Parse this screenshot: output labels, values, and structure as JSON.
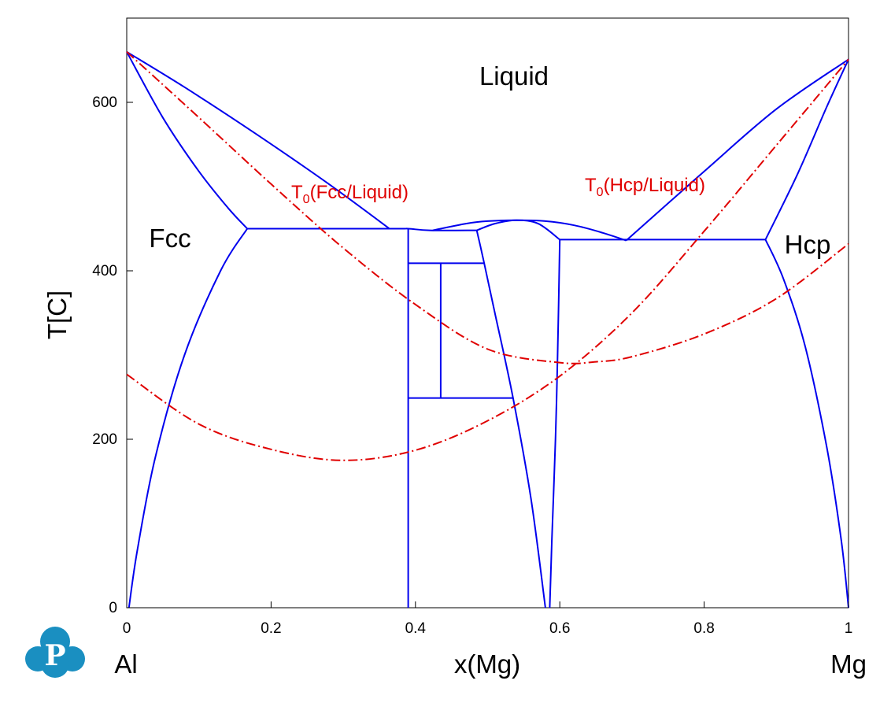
{
  "chart_data": {
    "type": "line",
    "title": "",
    "xlabel": "x(Mg)",
    "ylabel": "T[C]",
    "xlim": [
      0,
      1
    ],
    "ylim": [
      0,
      700
    ],
    "x_ticks": [
      "0",
      "0.2",
      "0.4",
      "0.6",
      "0.8",
      "1"
    ],
    "y_ticks": [
      "0",
      "200",
      "400",
      "600"
    ],
    "end_labels": {
      "left": "Al",
      "right": "Mg"
    },
    "grid": false,
    "legend": "none",
    "colors": {
      "phase_boundary": "#0000ee",
      "t0_curve": "#e00000"
    },
    "phase_labels": [
      "Liquid",
      "Fcc",
      "Hcp"
    ],
    "t0_labels": [
      {
        "main": "T",
        "sub": "0",
        "rest": "(Fcc/Liquid)"
      },
      {
        "main": "T",
        "sub": "0",
        "rest": "(Hcp/Liquid)"
      }
    ],
    "phase_boundaries": [
      {
        "x": [
          0.0,
          0.08,
          0.18,
          0.28,
          0.364
        ],
        "y": [
          660,
          618,
          562,
          503,
          450
        ]
      },
      {
        "x": [
          0.0,
          0.05,
          0.1,
          0.14,
          0.167
        ],
        "y": [
          660,
          582,
          518,
          475,
          450
        ]
      },
      {
        "x": [
          0.167,
          0.13,
          0.08,
          0.04,
          0.015,
          0.003
        ],
        "y": [
          450,
          400,
          300,
          180,
          70,
          0
        ]
      },
      {
        "x": [
          0.167,
          0.364,
          0.39,
          0.42,
          0.485
        ],
        "y": [
          450,
          450,
          450,
          448,
          448
        ]
      },
      {
        "x": [
          0.424,
          0.47,
          0.5,
          0.54,
          0.58,
          0.62,
          0.66,
          0.692
        ],
        "y": [
          448,
          456,
          459,
          460,
          459,
          454,
          445,
          436
        ]
      },
      {
        "x": [
          0.485,
          0.51,
          0.54,
          0.57,
          0.6
        ],
        "y": [
          448,
          456,
          460,
          456,
          437
        ]
      },
      {
        "x": [
          0.39,
          0.39
        ],
        "y": [
          450,
          0
        ]
      },
      {
        "x": [
          0.485,
          0.495,
          0.51,
          0.535,
          0.56,
          0.58
        ],
        "y": [
          448,
          410,
          350,
          250,
          130,
          0
        ]
      },
      {
        "x": [
          0.6,
          0.597,
          0.594,
          0.589,
          0.586
        ],
        "y": [
          437,
          300,
          200,
          80,
          0
        ]
      },
      {
        "x": [
          0.6,
          0.885
        ],
        "y": [
          437,
          437
        ]
      },
      {
        "x": [
          0.692,
          0.8,
          0.9,
          1.0
        ],
        "y": [
          436,
          518,
          592,
          651
        ]
      },
      {
        "x": [
          0.885,
          0.93,
          0.97,
          1.0
        ],
        "y": [
          437,
          516,
          595,
          651
        ]
      },
      {
        "x": [
          0.885,
          0.91,
          0.94,
          0.97,
          0.99,
          1.0
        ],
        "y": [
          437,
          390,
          310,
          190,
          80,
          0
        ]
      },
      {
        "x": [
          0.39,
          0.495
        ],
        "y": [
          409,
          409
        ]
      },
      {
        "x": [
          0.435,
          0.435
        ],
        "y": [
          409,
          249
        ]
      },
      {
        "x": [
          0.39,
          0.535
        ],
        "y": [
          249,
          249
        ]
      }
    ],
    "t0_curves": [
      {
        "name": "T0(Fcc/Liquid)",
        "x": [
          0.0,
          0.1,
          0.2,
          0.3,
          0.4,
          0.5,
          0.6,
          0.65,
          0.7,
          0.8,
          0.9,
          1.0
        ],
        "y": [
          660,
          582,
          503,
          427,
          360,
          307,
          291,
          292,
          298,
          325,
          367,
          432
        ]
      },
      {
        "name": "T0(Hcp/Liquid)",
        "x": [
          0.0,
          0.1,
          0.2,
          0.3,
          0.4,
          0.5,
          0.6,
          0.7,
          0.8,
          0.9,
          1.0
        ],
        "y": [
          277,
          218,
          188,
          175,
          187,
          222,
          275,
          350,
          447,
          549,
          651
        ]
      }
    ]
  },
  "logo": {
    "name": "logo",
    "letter": "P",
    "color": "#1a8fc1"
  }
}
